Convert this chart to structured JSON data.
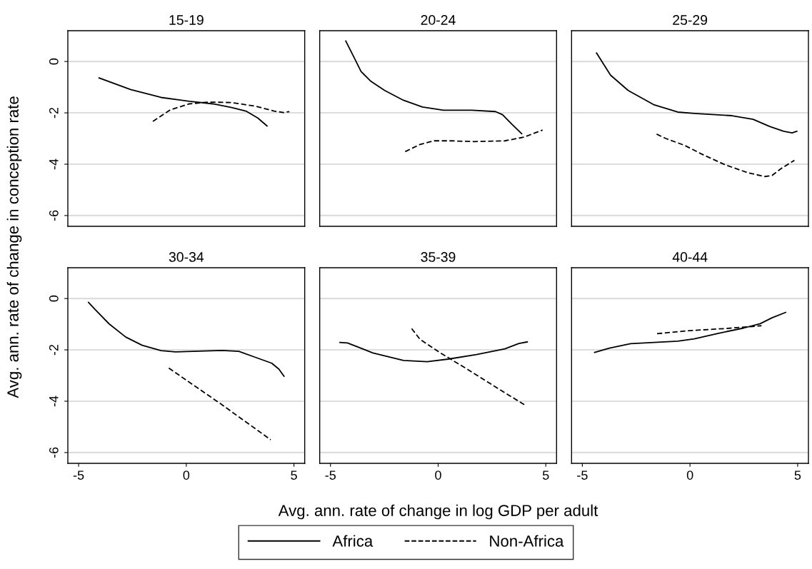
{
  "chart_data": [
    {
      "type": "line",
      "title": "15-19",
      "ylabel": "Avg. ann. rate of change in conception rate",
      "xlim": [
        -5.5,
        5.5
      ],
      "ylim": [
        -6.42,
        1.2
      ],
      "xticks": [
        -5,
        0,
        5
      ],
      "yticks": [
        0,
        -2,
        -4,
        -6
      ],
      "grid": "y",
      "tick_labels": "y",
      "legend": "bottom",
      "series": [
        {
          "name": "Africa",
          "color": "#000000",
          "line_style": "solid",
          "x": [
            -4.05,
            -2.59,
            -1.17,
            0.14,
            1.24,
            2.11,
            2.77,
            3.32,
            3.75
          ],
          "values": [
            -0.64,
            -1.09,
            -1.4,
            -1.55,
            -1.65,
            -1.79,
            -1.93,
            -2.2,
            -2.51
          ]
        },
        {
          "name": "Non-Africa",
          "color": "#000000",
          "line_style": "dashed",
          "x": [
            -1.55,
            -0.73,
            0.14,
            1.02,
            2.11,
            3.21,
            4.08,
            4.52,
            4.79
          ],
          "values": [
            -2.33,
            -1.88,
            -1.65,
            -1.58,
            -1.6,
            -1.74,
            -1.93,
            -1.99,
            -1.95
          ]
        }
      ]
    },
    {
      "type": "line",
      "title": "20-24",
      "xlim": [
        -5.5,
        5.5
      ],
      "ylim": [
        -6.42,
        1.2
      ],
      "xticks": [
        -5,
        0,
        5
      ],
      "yticks": [
        0,
        -2,
        -4,
        -6
      ],
      "grid": "y",
      "tick_labels": false,
      "series": [
        {
          "color": "#000000",
          "line_style": "solid",
          "x": [
            -4.29,
            -3.91,
            -3.58,
            -3.14,
            -2.48,
            -1.61,
            -0.73,
            0.25,
            1.56,
            2.66,
            2.99,
            3.42,
            3.88
          ],
          "values": [
            0.8,
            0.17,
            -0.39,
            -0.76,
            -1.13,
            -1.51,
            -1.77,
            -1.9,
            -1.9,
            -1.95,
            -2.07,
            -2.44,
            -2.81
          ]
        },
        {
          "color": "#000000",
          "line_style": "dashed",
          "x": [
            -1.53,
            -0.84,
            -0.19,
            0.58,
            1.67,
            3.1,
            3.97,
            4.85
          ],
          "values": [
            -3.51,
            -3.23,
            -3.09,
            -3.09,
            -3.12,
            -3.09,
            -2.95,
            -2.67
          ]
        }
      ]
    },
    {
      "type": "line",
      "title": "25-29",
      "xlim": [
        -5.5,
        5.5
      ],
      "ylim": [
        -6.42,
        1.2
      ],
      "xticks": [
        -5,
        0,
        5
      ],
      "yticks": [
        0,
        -2,
        -4,
        -6
      ],
      "grid": "y",
      "tick_labels": false,
      "series": [
        {
          "color": "#000000",
          "line_style": "solid",
          "x": [
            -4.34,
            -3.69,
            -2.87,
            -1.66,
            -0.57,
            0.2,
            1.95,
            2.93,
            3.7,
            4.35,
            4.74,
            4.96
          ],
          "values": [
            0.33,
            -0.53,
            -1.13,
            -1.69,
            -1.97,
            -2.02,
            -2.11,
            -2.25,
            -2.53,
            -2.72,
            -2.78,
            -2.72
          ]
        },
        {
          "color": "#000000",
          "line_style": "dashed",
          "x": [
            -1.55,
            -1.12,
            -0.24,
            0.53,
            1.62,
            2.71,
            3.48,
            3.81,
            4.25,
            4.85
          ],
          "values": [
            -2.83,
            -3.0,
            -3.27,
            -3.6,
            -4.02,
            -4.34,
            -4.48,
            -4.44,
            -4.16,
            -3.85
          ]
        }
      ]
    },
    {
      "type": "line",
      "title": "30-34",
      "xlim": [
        -5.5,
        5.5
      ],
      "ylim": [
        -6.42,
        1.2
      ],
      "xticks": [
        -5,
        0,
        5
      ],
      "yticks": [
        0,
        -2,
        -4,
        -6
      ],
      "grid": "y",
      "series": [
        {
          "color": "#000000",
          "line_style": "solid",
          "x": [
            -4.54,
            -4.23,
            -3.58,
            -2.81,
            -2.05,
            -1.17,
            -0.51,
            0.58,
            1.67,
            2.44,
            3.21,
            3.97,
            4.3,
            4.54
          ],
          "values": [
            -0.15,
            -0.43,
            -0.99,
            -1.5,
            -1.82,
            -2.03,
            -2.08,
            -2.05,
            -2.02,
            -2.06,
            -2.29,
            -2.52,
            -2.75,
            -3.03
          ]
        },
        {
          "color": "#000000",
          "line_style": "dashed",
          "x": [
            -0.81,
            1.56,
            3.92
          ],
          "values": [
            -2.71,
            -4.08,
            -5.5
          ]
        }
      ]
    },
    {
      "type": "line",
      "title": "35-39",
      "xlabel": "Avg. ann. rate of change in log GDP per adult",
      "xlim": [
        -5.5,
        5.5
      ],
      "ylim": [
        -6.42,
        1.2
      ],
      "xticks": [
        -5,
        0,
        5
      ],
      "yticks": [
        0,
        -2,
        -4,
        -6
      ],
      "grid": "y",
      "tick_labels": "x",
      "series": [
        {
          "color": "#000000",
          "line_style": "solid",
          "x": [
            -4.56,
            -4.21,
            -3.03,
            -1.61,
            -0.51,
            0.47,
            1.78,
            3.1,
            3.75,
            4.14
          ],
          "values": [
            -1.71,
            -1.73,
            -2.12,
            -2.41,
            -2.46,
            -2.36,
            -2.18,
            -1.96,
            -1.75,
            -1.69
          ]
        },
        {
          "color": "#000000",
          "line_style": "dashed",
          "x": [
            -1.23,
            -0.84,
            0.03,
            1.35,
            2.77,
            4.03
          ],
          "values": [
            -1.17,
            -1.59,
            -2.08,
            -2.75,
            -3.5,
            -4.15
          ]
        }
      ]
    },
    {
      "type": "line",
      "title": "40-44",
      "xlim": [
        -5.5,
        5.5
      ],
      "ylim": [
        -6.42,
        1.2
      ],
      "xticks": [
        -5,
        0,
        5
      ],
      "yticks": [
        0,
        -2,
        -4,
        -6
      ],
      "grid": "y",
      "tick_labels": "x",
      "series": [
        {
          "color": "#000000",
          "line_style": "solid",
          "x": [
            -4.43,
            -3.74,
            -2.76,
            -1.66,
            -0.57,
            0.2,
            1.29,
            2.49,
            3.26,
            3.81,
            4.44
          ],
          "values": [
            -2.1,
            -1.93,
            -1.76,
            -1.71,
            -1.66,
            -1.57,
            -1.36,
            -1.15,
            -0.98,
            -0.75,
            -0.54
          ]
        },
        {
          "color": "#000000",
          "line_style": "dashed",
          "x": [
            -1.53,
            -0.02,
            1.62,
            3.32
          ],
          "values": [
            -1.37,
            -1.25,
            -1.17,
            -1.06
          ]
        }
      ]
    }
  ]
}
